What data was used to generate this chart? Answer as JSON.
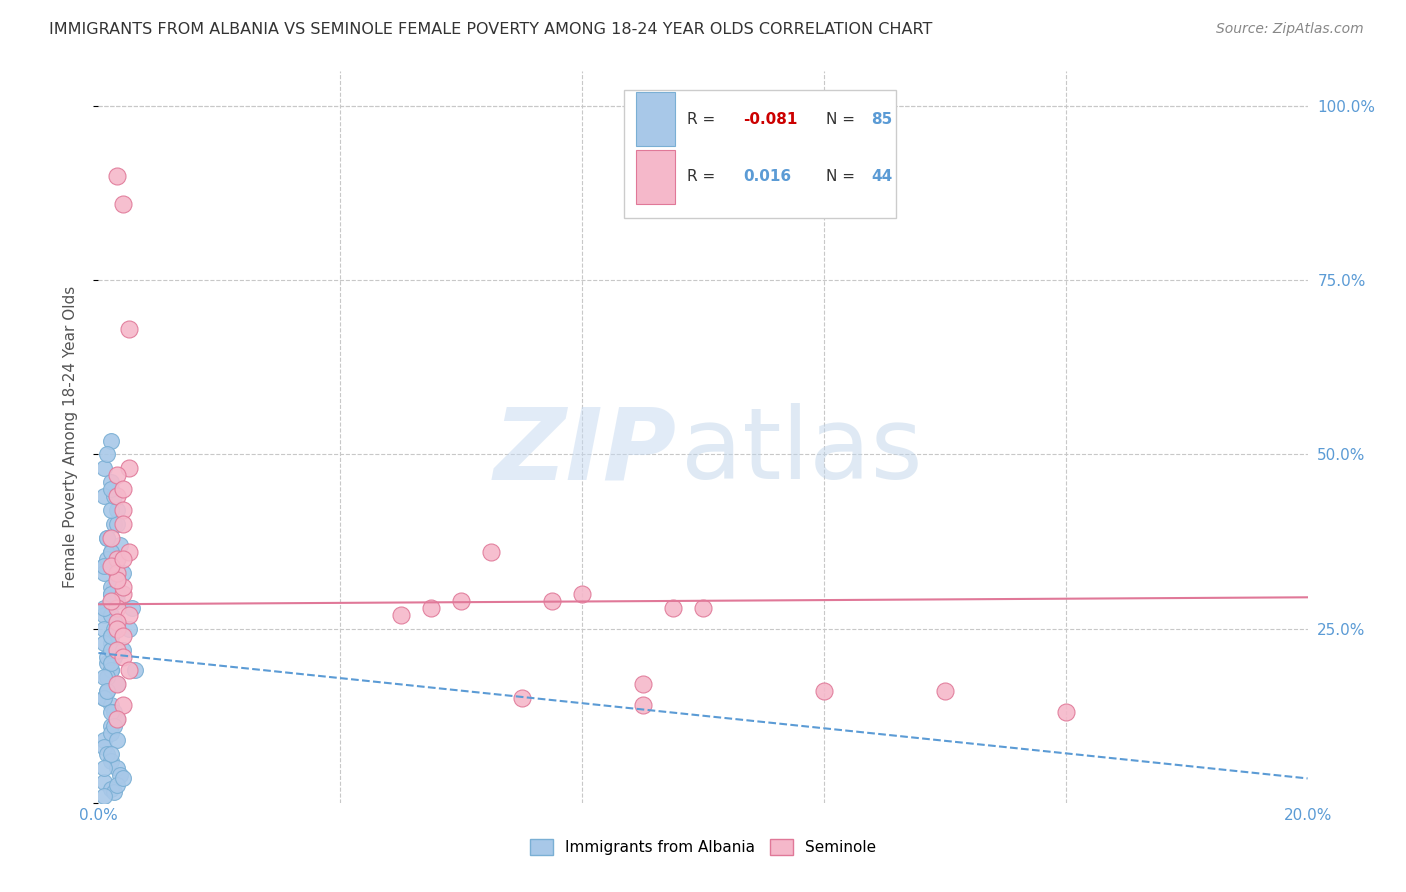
{
  "title": "IMMIGRANTS FROM ALBANIA VS SEMINOLE FEMALE POVERTY AMONG 18-24 YEAR OLDS CORRELATION CHART",
  "source": "Source: ZipAtlas.com",
  "ylabel": "Female Poverty Among 18-24 Year Olds",
  "xlim": [
    0.0,
    0.2
  ],
  "ylim": [
    0.0,
    1.05
  ],
  "background_color": "#ffffff",
  "grid_color": "#c8c8c8",
  "axis_color": "#5b9bd5",
  "watermark_zip_color": "#c5d9f0",
  "watermark_atlas_color": "#c0d5ea",
  "watermark_alpha": 0.5,
  "title_color": "#333333",
  "source_color": "#888888",
  "ylabel_color": "#555555",
  "s1_color": "#a8c8e8",
  "s1_edge": "#7aafd4",
  "s1_trend_color": "#5b9bd5",
  "s2_color": "#f5b8ca",
  "s2_edge": "#e07898",
  "s2_trend_color": "#e07898",
  "legend_box_color": "#ffffff",
  "legend_border_color": "#cccccc",
  "R1_color": "#cc0000",
  "R2_color": "#5b9bd5",
  "N_color": "#5b9bd5",
  "albania_x": [
    0.0015,
    0.002,
    0.001,
    0.0025,
    0.003,
    0.0035,
    0.004,
    0.002,
    0.0015,
    0.001,
    0.003,
    0.002,
    0.0025,
    0.003,
    0.001,
    0.002,
    0.003,
    0.0015,
    0.002,
    0.0025,
    0.002,
    0.003,
    0.0015,
    0.001,
    0.002,
    0.0025,
    0.002,
    0.001,
    0.003,
    0.002,
    0.001,
    0.0015,
    0.002,
    0.003,
    0.0035,
    0.001,
    0.002,
    0.0025,
    0.001,
    0.003,
    0.004,
    0.002,
    0.003,
    0.001,
    0.003,
    0.002,
    0.0025,
    0.001,
    0.0015,
    0.002,
    0.003,
    0.001,
    0.002,
    0.0025,
    0.003,
    0.002,
    0.001,
    0.002,
    0.0015,
    0.003,
    0.002,
    0.001,
    0.0015,
    0.003,
    0.002,
    0.001,
    0.002,
    0.003,
    0.002,
    0.001,
    0.0015,
    0.0055,
    0.005,
    0.004,
    0.006,
    0.002,
    0.001,
    0.0015,
    0.003,
    0.002,
    0.0025,
    0.002,
    0.001,
    0.0015,
    0.002
  ],
  "albania_y": [
    0.38,
    0.36,
    0.34,
    0.4,
    0.35,
    0.37,
    0.33,
    0.3,
    0.28,
    0.27,
    0.32,
    0.29,
    0.31,
    0.26,
    0.25,
    0.23,
    0.22,
    0.2,
    0.24,
    0.21,
    0.19,
    0.17,
    0.16,
    0.15,
    0.14,
    0.13,
    0.11,
    0.09,
    0.12,
    0.1,
    0.08,
    0.07,
    0.06,
    0.05,
    0.04,
    0.03,
    0.02,
    0.015,
    0.01,
    0.025,
    0.035,
    0.52,
    0.42,
    0.44,
    0.3,
    0.27,
    0.25,
    0.23,
    0.21,
    0.19,
    0.17,
    0.15,
    0.13,
    0.11,
    0.09,
    0.07,
    0.05,
    0.22,
    0.18,
    0.29,
    0.31,
    0.33,
    0.35,
    0.26,
    0.24,
    0.28,
    0.3,
    0.32,
    0.2,
    0.18,
    0.16,
    0.28,
    0.25,
    0.22,
    0.19,
    0.36,
    0.34,
    0.38,
    0.4,
    0.42,
    0.44,
    0.46,
    0.48,
    0.5,
    0.45
  ],
  "seminole_x": [
    0.003,
    0.004,
    0.005,
    0.002,
    0.004,
    0.003,
    0.005,
    0.004,
    0.003,
    0.002,
    0.004,
    0.003,
    0.005,
    0.003,
    0.002,
    0.003,
    0.06,
    0.08,
    0.1,
    0.05,
    0.07,
    0.09,
    0.004,
    0.003,
    0.005,
    0.004,
    0.003,
    0.004,
    0.003,
    0.004,
    0.005,
    0.003,
    0.004,
    0.003,
    0.055,
    0.075,
    0.095,
    0.12,
    0.14,
    0.16,
    0.003,
    0.004,
    0.065,
    0.09
  ],
  "seminole_y": [
    0.44,
    0.42,
    0.48,
    0.38,
    0.4,
    0.35,
    0.36,
    0.3,
    0.28,
    0.29,
    0.31,
    0.33,
    0.27,
    0.32,
    0.34,
    0.26,
    0.29,
    0.3,
    0.28,
    0.27,
    0.15,
    0.14,
    0.86,
    0.9,
    0.68,
    0.35,
    0.25,
    0.24,
    0.22,
    0.21,
    0.19,
    0.17,
    0.14,
    0.12,
    0.28,
    0.29,
    0.28,
    0.16,
    0.16,
    0.13,
    0.47,
    0.45,
    0.36,
    0.17
  ],
  "s1_trend_x": [
    0.0,
    0.2
  ],
  "s1_trend_y": [
    0.215,
    0.035
  ],
  "s2_trend_x": [
    0.0,
    0.2
  ],
  "s2_trend_y": [
    0.285,
    0.295
  ]
}
